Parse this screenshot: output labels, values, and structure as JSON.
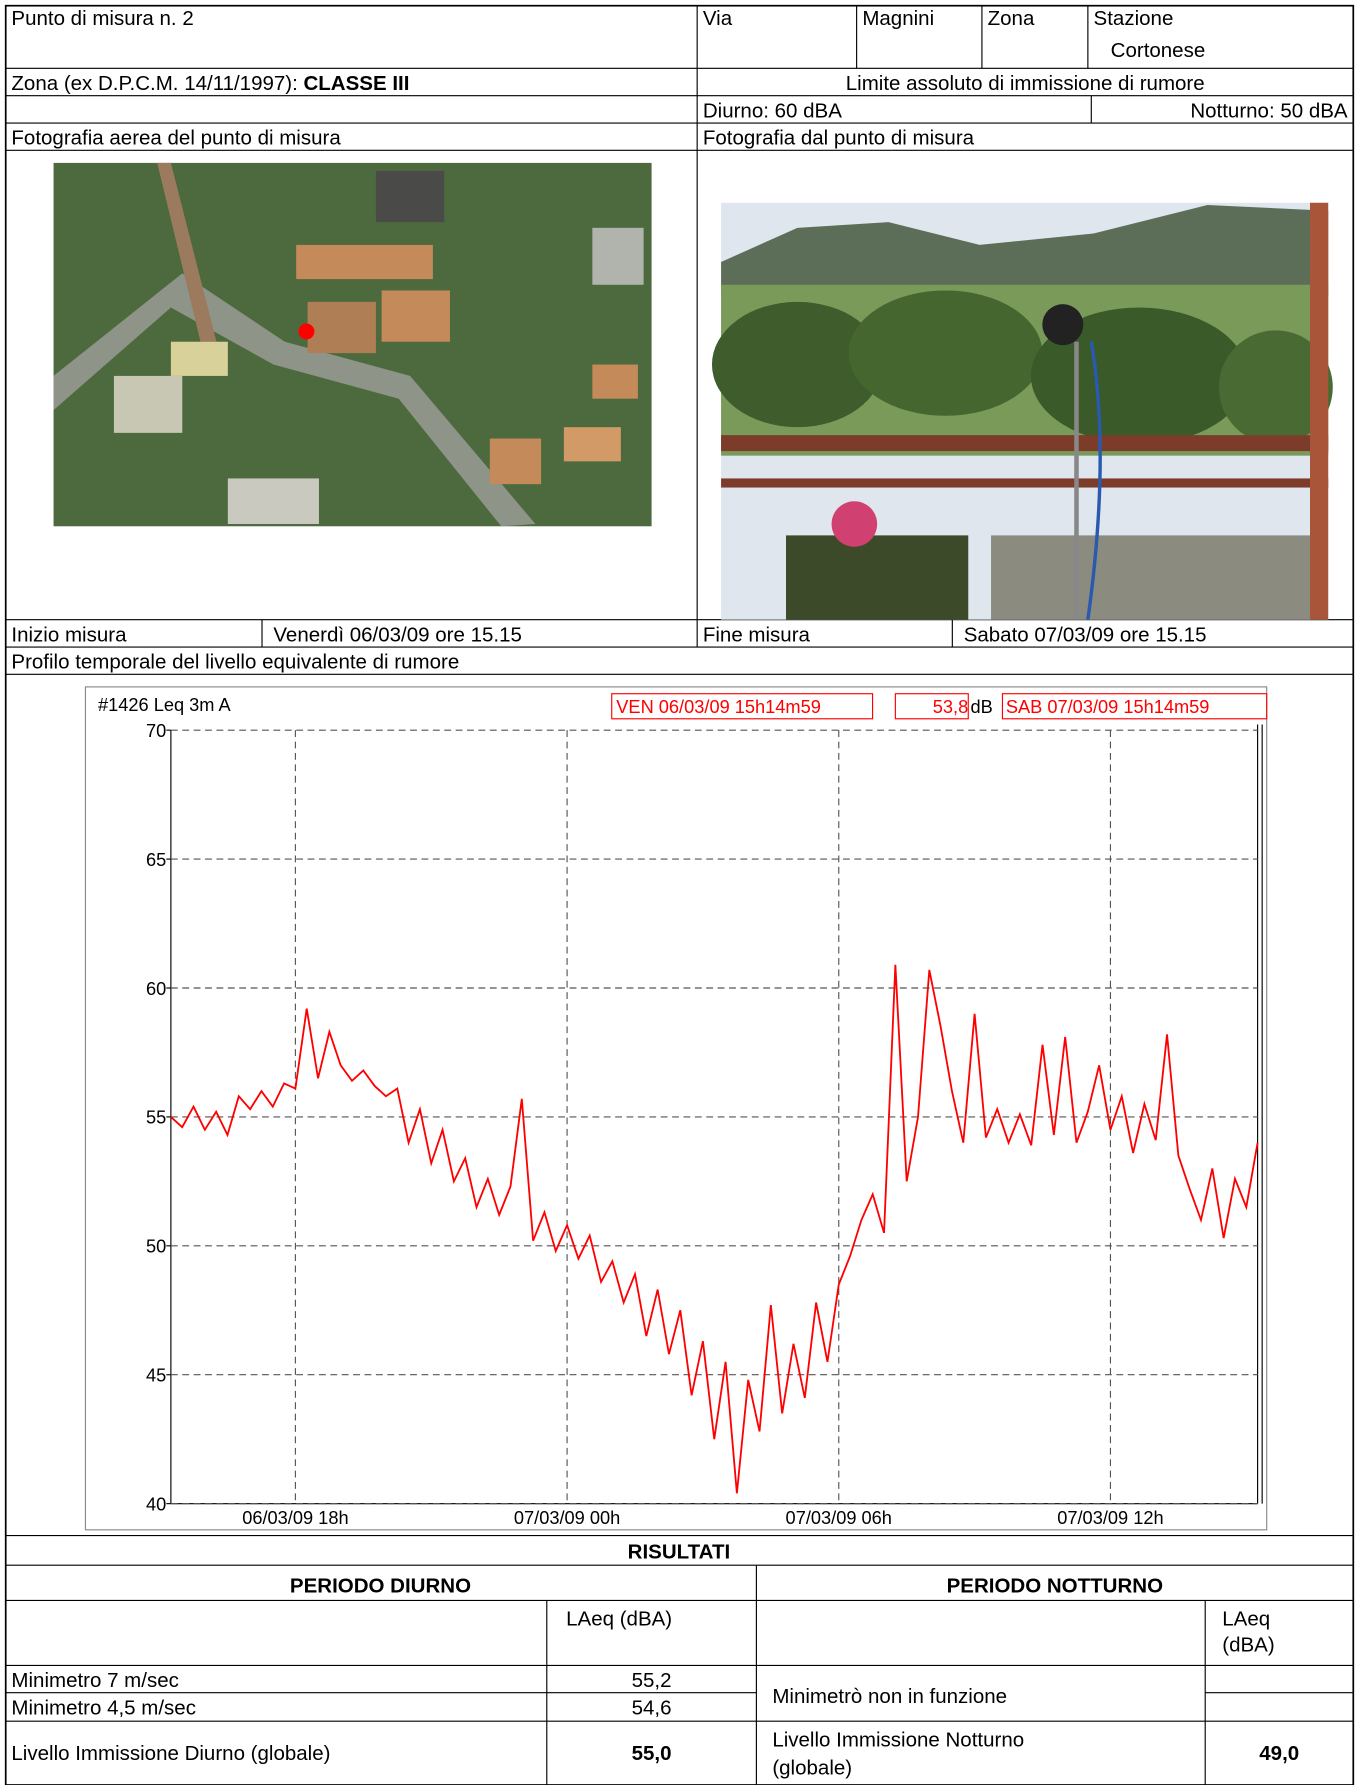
{
  "header": {
    "point": "Punto di misura n. 2",
    "via_label": "Via",
    "via": "Magnini",
    "zona_label": "Zona",
    "zona": [
      "Stazione",
      "Cortonese"
    ]
  },
  "classification": {
    "label": "Zona (ex D.P.C.M. 14/11/1997):",
    "class": "CLASSE III"
  },
  "limits": {
    "title": "Limite assoluto di immissione di rumore",
    "day": "Diurno: 60 dBA",
    "night": "Notturno: 50 dBA"
  },
  "photos": {
    "aerial": "Fotografia aerea del punto di misura",
    "view": "Fotografia dal punto di misura"
  },
  "measurement": {
    "start_label": "Inizio misura",
    "start": "Venerdì 06/03/09 ore 15.15",
    "end_label": "Fine misura",
    "end": "Sabato 07/03/09 ore 15.15"
  },
  "profile_label": "Profilo temporale del livello equivalente di rumore",
  "chart_data": {
    "type": "line",
    "header": {
      "instrument": "#1426 Leq 3m  A",
      "start": "VEN 06/03/09 15h14m59",
      "leq": "53,8",
      "unit": "dB",
      "end": "SAB 07/03/09 15h14m59"
    },
    "x": [
      15.25,
      15.5,
      15.75,
      16,
      16.25,
      16.5,
      16.75,
      17,
      17.25,
      17.5,
      17.75,
      18,
      18.25,
      18.5,
      18.75,
      19,
      19.25,
      19.5,
      19.75,
      20,
      20.25,
      20.5,
      20.75,
      21,
      21.25,
      21.5,
      21.75,
      22,
      22.25,
      22.5,
      22.75,
      23,
      23.25,
      23.5,
      23.75,
      24,
      24.25,
      24.5,
      24.75,
      25,
      25.25,
      25.5,
      25.75,
      26,
      26.25,
      26.5,
      26.75,
      27,
      27.25,
      27.5,
      27.75,
      28,
      28.25,
      28.5,
      28.75,
      29,
      29.25,
      29.5,
      29.75,
      30,
      30.25,
      30.5,
      30.75,
      31,
      31.25,
      31.5,
      31.75,
      32,
      32.25,
      32.5,
      32.75,
      33,
      33.25,
      33.5,
      33.75,
      34,
      34.25,
      34.5,
      34.75,
      35,
      35.25,
      35.5,
      35.75,
      36,
      36.25,
      36.5,
      36.75,
      37,
      37.25,
      37.5,
      37.75,
      38,
      38.25,
      38.5,
      38.75,
      39,
      39.25
    ],
    "series": [
      {
        "color": "#ff0000",
        "values": [
          55.0,
          54.6,
          55.4,
          54.5,
          55.2,
          54.3,
          55.8,
          55.3,
          56.0,
          55.4,
          56.3,
          56.1,
          59.2,
          56.5,
          58.3,
          57.0,
          56.4,
          56.8,
          56.2,
          55.8,
          56.1,
          54.0,
          55.3,
          53.2,
          54.5,
          52.5,
          53.4,
          51.5,
          52.6,
          51.2,
          52.3,
          55.7,
          50.2,
          51.3,
          49.8,
          50.8,
          49.5,
          50.4,
          48.6,
          49.4,
          47.8,
          48.9,
          46.5,
          48.3,
          45.8,
          47.5,
          44.2,
          46.3,
          42.5,
          45.5,
          40.4,
          44.8,
          42.8,
          47.7,
          43.5,
          46.2,
          44.1,
          47.8,
          45.5,
          48.5,
          49.6,
          51.0,
          52.0,
          50.5,
          60.9,
          52.5,
          55.0,
          60.7,
          58.5,
          56.0,
          54.0,
          59.0,
          54.2,
          55.3,
          54.0,
          55.1,
          53.9,
          57.8,
          54.3,
          58.1,
          54.0,
          55.2,
          57.0,
          54.5,
          55.8,
          53.6,
          55.5,
          54.1,
          58.2,
          53.5,
          52.2,
          51.0,
          53.0,
          50.3,
          52.6,
          51.5,
          54.0
        ]
      }
    ],
    "xlim": [
      15.25,
      39.25
    ],
    "xticks": [
      {
        "value": 18,
        "label": "06/03/09 18h"
      },
      {
        "value": 24,
        "label": "07/03/09 00h"
      },
      {
        "value": 30,
        "label": "07/03/09 06h"
      },
      {
        "value": 36,
        "label": "07/03/09 12h"
      }
    ],
    "ylim": [
      40,
      70
    ],
    "yticks": [
      40,
      45,
      50,
      55,
      60,
      65,
      70
    ],
    "grid": true
  },
  "results": {
    "title": "RISULTATI",
    "day": {
      "title": "PERIODO DIURNO",
      "col": "LAeq (dBA)",
      "rows": [
        [
          "Minimetro 7 m/sec",
          "55,2"
        ],
        [
          "Minimetro 4,5 m/sec",
          "54,6"
        ]
      ],
      "total": [
        "Livello Immissione Diurno (globale)",
        "55,0"
      ]
    },
    "night": {
      "title": "PERIODO NOTTURNO",
      "col": [
        "LAeq",
        "(dBA)"
      ],
      "note": "Minimetrò non in funzione",
      "total": [
        [
          "Livello Immissione Notturno",
          "(globale)"
        ],
        "49,0"
      ]
    }
  }
}
